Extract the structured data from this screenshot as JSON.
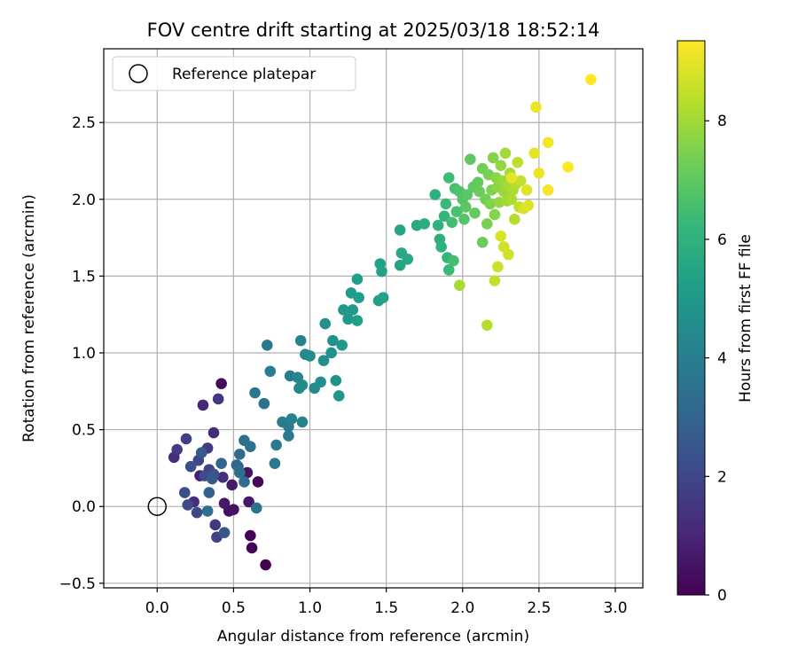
{
  "chart_data": {
    "type": "scatter",
    "title": "FOV centre drift starting at 2025/03/18 18:52:14",
    "xlabel": "Angular distance from reference (arcmin)",
    "ylabel": "Rotation from reference (arcmin)",
    "xlim": [
      -0.35,
      3.18
    ],
    "ylim": [
      -0.53,
      2.98
    ],
    "xticks": [
      0.0,
      0.5,
      1.0,
      1.5,
      2.0,
      2.5,
      3.0
    ],
    "xtick_labels": [
      "0.0",
      "0.5",
      "1.0",
      "1.5",
      "2.0",
      "2.5",
      "3.0"
    ],
    "yticks": [
      -0.5,
      0.0,
      0.5,
      1.0,
      1.5,
      2.0,
      2.5
    ],
    "ytick_labels": [
      "−0.5",
      "0.0",
      "0.5",
      "1.0",
      "1.5",
      "2.0",
      "2.5"
    ],
    "grid": true,
    "legend": {
      "placement": "upper-left",
      "entries": [
        {
          "label": "Reference platepar",
          "marker": "hollow-circle",
          "color": "#000000"
        }
      ]
    },
    "reference_point": {
      "x": 0.0,
      "y": 0.0
    },
    "colorbar": {
      "label": "Hours from first FF file",
      "min": 0,
      "max": 9.35,
      "ticks": [
        0,
        2,
        4,
        6,
        8
      ],
      "tick_labels": [
        "0",
        "2",
        "4",
        "6",
        "8"
      ],
      "colormap": "viridis"
    },
    "colormap_stops": [
      "#440154",
      "#482878",
      "#3e4989",
      "#31688e",
      "#26828e",
      "#1f9e89",
      "#35b779",
      "#6ece58",
      "#b5de2b",
      "#fde725"
    ],
    "points": [
      [
        0.66,
        0.16,
        0.2
      ],
      [
        0.61,
        -0.19,
        0.1
      ],
      [
        0.62,
        -0.27,
        0.1
      ],
      [
        0.71,
        -0.38,
        0.0
      ],
      [
        0.42,
        0.8,
        0.3
      ],
      [
        0.47,
        -0.03,
        0.4
      ],
      [
        0.5,
        -0.02,
        0.5
      ],
      [
        0.6,
        0.03,
        0.6
      ],
      [
        0.49,
        0.14,
        0.7
      ],
      [
        0.59,
        0.22,
        0.5
      ],
      [
        0.44,
        0.02,
        0.6
      ],
      [
        0.28,
        0.2,
        0.8
      ],
      [
        0.3,
        0.66,
        1.0
      ],
      [
        0.37,
        0.48,
        1.1
      ],
      [
        0.24,
        0.03,
        1.2
      ],
      [
        0.43,
        0.19,
        1.3
      ],
      [
        0.11,
        0.32,
        1.2
      ],
      [
        0.13,
        0.37,
        1.6
      ],
      [
        0.19,
        0.44,
        1.8
      ],
      [
        0.4,
        0.7,
        1.5
      ],
      [
        0.33,
        0.38,
        1.6
      ],
      [
        0.27,
        0.3,
        2.0
      ],
      [
        0.34,
        0.24,
        1.9
      ],
      [
        0.38,
        -0.12,
        1.5
      ],
      [
        0.39,
        -0.2,
        1.9
      ],
      [
        0.26,
        -0.04,
        2.0
      ],
      [
        0.2,
        0.01,
        2.1
      ],
      [
        0.18,
        0.09,
        2.2
      ],
      [
        0.31,
        0.2,
        2.1
      ],
      [
        0.22,
        0.26,
        2.3
      ],
      [
        0.37,
        0.21,
        2.4
      ],
      [
        0.44,
        -0.17,
        2.5
      ],
      [
        0.36,
        0.18,
        2.6
      ],
      [
        0.34,
        0.09,
        2.8
      ],
      [
        0.29,
        0.35,
        2.6
      ],
      [
        0.42,
        0.28,
        3.0
      ],
      [
        0.52,
        0.27,
        3.0
      ],
      [
        0.54,
        0.34,
        3.2
      ],
      [
        0.53,
        0.26,
        3.2
      ],
      [
        0.57,
        0.16,
        3.3
      ],
      [
        0.54,
        0.22,
        3.4
      ],
      [
        0.57,
        0.43,
        3.4
      ],
      [
        0.61,
        0.39,
        3.5
      ],
      [
        0.33,
        -0.03,
        3.4
      ],
      [
        0.65,
        -0.01,
        3.6
      ],
      [
        0.64,
        0.74,
        3.7
      ],
      [
        0.7,
        0.67,
        3.6
      ],
      [
        0.72,
        1.05,
        3.8
      ],
      [
        0.77,
        0.28,
        3.7
      ],
      [
        0.78,
        0.4,
        3.8
      ],
      [
        0.82,
        0.55,
        3.9
      ],
      [
        0.86,
        0.52,
        3.9
      ],
      [
        0.86,
        0.46,
        3.8
      ],
      [
        0.87,
        0.85,
        4.0
      ],
      [
        0.88,
        0.57,
        4.1
      ],
      [
        0.74,
        0.88,
        4.0
      ],
      [
        0.94,
        1.08,
        4.2
      ],
      [
        0.95,
        0.55,
        4.2
      ],
      [
        0.92,
        0.84,
        4.3
      ],
      [
        0.93,
        0.77,
        4.4
      ],
      [
        0.95,
        0.79,
        4.4
      ],
      [
        0.97,
        0.99,
        4.5
      ],
      [
        1.0,
        0.98,
        4.5
      ],
      [
        1.03,
        0.77,
        4.5
      ],
      [
        1.07,
        0.81,
        4.6
      ],
      [
        1.09,
        0.95,
        4.6
      ],
      [
        1.1,
        1.19,
        4.7
      ],
      [
        1.14,
        1.0,
        4.7
      ],
      [
        1.15,
        1.08,
        4.8
      ],
      [
        1.17,
        0.82,
        4.8
      ],
      [
        1.19,
        0.72,
        4.9
      ],
      [
        1.21,
        1.05,
        4.9
      ],
      [
        1.22,
        1.28,
        5.0
      ],
      [
        1.25,
        1.22,
        5.0
      ],
      [
        1.27,
        1.39,
        5.1
      ],
      [
        1.28,
        1.28,
        5.1
      ],
      [
        1.31,
        1.48,
        5.2
      ],
      [
        1.32,
        1.36,
        5.2
      ],
      [
        1.31,
        1.21,
        5.2
      ],
      [
        1.45,
        1.34,
        5.3
      ],
      [
        1.46,
        1.58,
        5.3
      ],
      [
        1.47,
        1.53,
        5.4
      ],
      [
        1.48,
        1.36,
        5.4
      ],
      [
        1.59,
        1.57,
        5.5
      ],
      [
        1.59,
        1.8,
        5.5
      ],
      [
        1.6,
        1.65,
        5.6
      ],
      [
        1.64,
        1.61,
        5.6
      ],
      [
        1.7,
        1.83,
        5.7
      ],
      [
        1.75,
        1.84,
        5.8
      ],
      [
        1.82,
        2.03,
        5.9
      ],
      [
        1.85,
        1.74,
        5.9
      ],
      [
        1.84,
        1.83,
        6.0
      ],
      [
        1.86,
        1.69,
        6.0
      ],
      [
        1.88,
        1.89,
        6.1
      ],
      [
        1.9,
        1.62,
        6.2
      ],
      [
        1.91,
        1.54,
        6.3
      ],
      [
        1.89,
        1.97,
        6.3
      ],
      [
        1.91,
        2.14,
        6.4
      ],
      [
        1.93,
        1.85,
        6.5
      ],
      [
        1.94,
        1.6,
        6.5
      ],
      [
        1.95,
        2.07,
        6.6
      ],
      [
        1.96,
        1.92,
        6.6
      ],
      [
        1.98,
        2.05,
        6.7
      ],
      [
        2.0,
        2.0,
        6.8
      ],
      [
        2.01,
        1.87,
        6.8
      ],
      [
        2.02,
        1.95,
        6.9
      ],
      [
        2.03,
        2.03,
        6.9
      ],
      [
        2.05,
        2.26,
        7.0
      ],
      [
        2.07,
        2.08,
        7.0
      ],
      [
        2.08,
        1.91,
        7.1
      ],
      [
        2.1,
        2.11,
        7.1
      ],
      [
        2.11,
        2.05,
        7.2
      ],
      [
        2.13,
        1.72,
        7.2
      ],
      [
        2.13,
        2.2,
        7.3
      ],
      [
        2.15,
        2.0,
        7.3
      ],
      [
        2.16,
        1.84,
        7.4
      ],
      [
        2.17,
        2.16,
        7.4
      ],
      [
        2.18,
        1.97,
        7.5
      ],
      [
        2.19,
        2.06,
        7.5
      ],
      [
        2.2,
        2.27,
        7.6
      ],
      [
        2.21,
        1.9,
        7.6
      ],
      [
        2.22,
        2.14,
        7.7
      ],
      [
        2.23,
        2.08,
        7.7
      ],
      [
        2.24,
        1.98,
        7.8
      ],
      [
        2.25,
        2.22,
        7.8
      ],
      [
        2.26,
        2.12,
        7.9
      ],
      [
        2.27,
        2.05,
        7.9
      ],
      [
        2.28,
        2.3,
        8.0
      ],
      [
        2.29,
        1.99,
        8.0
      ],
      [
        2.3,
        2.09,
        8.1
      ],
      [
        2.31,
        2.17,
        8.1
      ],
      [
        2.32,
        2.0,
        8.2
      ],
      [
        2.33,
        2.06,
        8.2
      ],
      [
        2.34,
        1.87,
        8.3
      ],
      [
        2.35,
        2.1,
        8.3
      ],
      [
        2.36,
        2.24,
        8.4
      ],
      [
        2.37,
        1.95,
        8.4
      ],
      [
        2.38,
        2.12,
        8.5
      ],
      [
        1.98,
        1.44,
        8.1
      ],
      [
        2.16,
        1.18,
        8.3
      ],
      [
        2.21,
        1.47,
        8.5
      ],
      [
        2.23,
        1.56,
        8.6
      ],
      [
        2.27,
        1.69,
        8.7
      ],
      [
        2.3,
        1.64,
        8.7
      ],
      [
        2.25,
        1.76,
        8.8
      ],
      [
        2.4,
        1.94,
        8.8
      ],
      [
        2.42,
        2.06,
        8.9
      ],
      [
        2.43,
        1.96,
        8.9
      ],
      [
        2.47,
        2.3,
        9.0
      ],
      [
        2.48,
        2.6,
        9.1
      ],
      [
        2.5,
        2.17,
        9.1
      ],
      [
        2.56,
        2.37,
        9.2
      ],
      [
        2.56,
        2.06,
        9.2
      ],
      [
        2.69,
        2.21,
        9.3
      ],
      [
        2.84,
        2.78,
        9.35
      ],
      [
        2.32,
        2.14,
        9.0
      ]
    ]
  }
}
